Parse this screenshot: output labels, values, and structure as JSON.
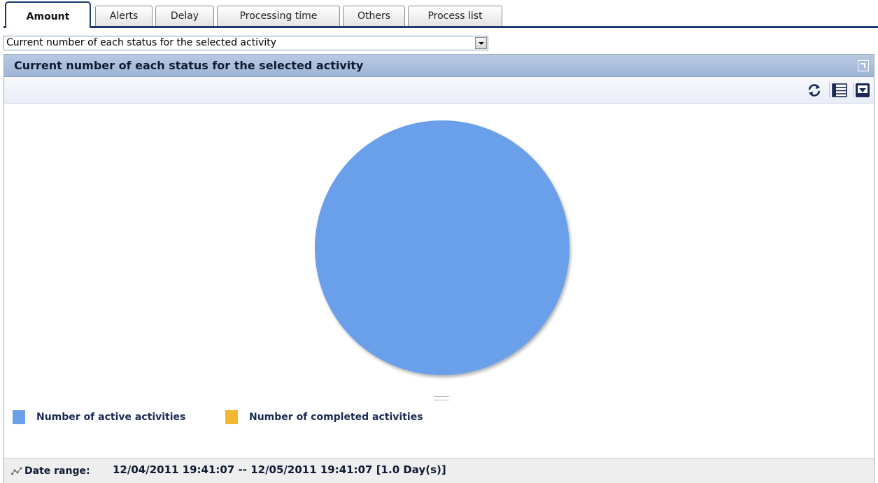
{
  "tabs": [
    {
      "label": "Amount",
      "active": true
    },
    {
      "label": "Alerts",
      "active": false
    },
    {
      "label": "Delay",
      "active": false
    },
    {
      "label": "Processing time",
      "active": false
    },
    {
      "label": "Others",
      "active": false
    },
    {
      "label": "Process list",
      "active": false
    }
  ],
  "view_select": {
    "value": "Current number of each status for the selected activity"
  },
  "panel": {
    "title": "Current number of each status for the selected activity",
    "toolbar": {
      "icons": [
        "refresh-icon",
        "list-view-icon",
        "collapse-icon"
      ]
    }
  },
  "chart_data": {
    "type": "pie",
    "title": "",
    "series": [
      {
        "name": "Number of active activities",
        "value": 1,
        "color": "#6b9fea"
      },
      {
        "name": "Number of completed activities",
        "value": 0,
        "color": "#f2b731"
      }
    ],
    "legend": "bottom-left"
  },
  "footer": {
    "label": "Date range:",
    "value": "12/04/2011 19:41:07 -- 12/05/2011 19:41:07 [1.0 Day(s)]",
    "icon": "chart-line-icon"
  }
}
